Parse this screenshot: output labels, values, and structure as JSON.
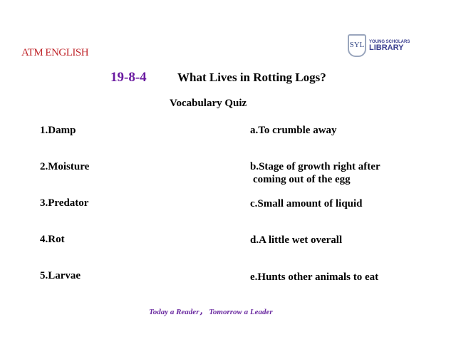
{
  "brand": "ATM ENGLISH",
  "logo": {
    "mark": "SYL",
    "line1": "YOUNG SCHOLARS",
    "line2": "LIBRARY"
  },
  "lesson_number": "19-8-4",
  "title": "What Lives in Rotting Logs?",
  "subtitle": "Vocabulary Quiz",
  "words": [
    "1.Damp",
    "2.Moisture",
    "3.Predator",
    "4.Rot",
    "5.Larvae"
  ],
  "definitions": [
    "a.To crumble away",
    "b.Stage of growth right  after",
    "coming out of the  egg",
    "c.Small amount of liquid",
    "d.A little wet overall",
    "e.Hunts other animals to  eat"
  ],
  "footer": "Today a Reader， Tomorrow a Leader"
}
